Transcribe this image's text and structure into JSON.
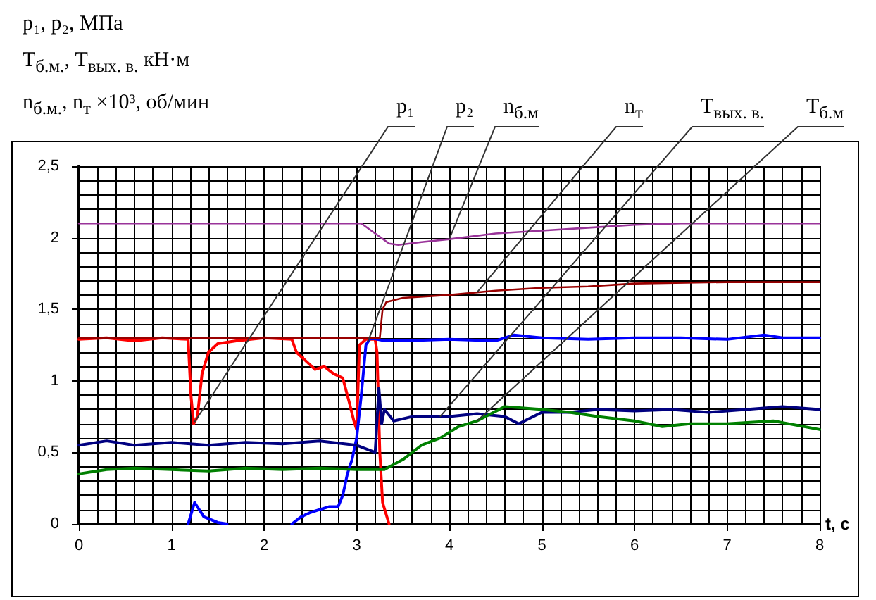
{
  "chart_data": {
    "type": "line",
    "ylabel": "p₁, p₂, МПа\nT$_{б.м.}$, T$_{вых. в.}$ кН·м\nn$_{б.м.}$, n$_{т}$ ×10³, об/мин",
    "xlabel": "t, c",
    "xlim": [
      0,
      8
    ],
    "xticks": [
      0,
      1,
      2,
      3,
      4,
      5,
      6,
      7,
      8
    ],
    "ylim": [
      0,
      2.5
    ],
    "yticks": [
      {
        "value": 0,
        "label": "0"
      },
      {
        "value": 0.5,
        "label": "0,5"
      },
      {
        "value": 1,
        "label": "1"
      },
      {
        "value": 1.5,
        "label": "1,5"
      },
      {
        "value": 2,
        "label": "2"
      },
      {
        "value": 2.5,
        "label": "2,5"
      }
    ],
    "grid": true,
    "series": [
      {
        "name": "p₁",
        "color": "#ff0000",
        "x": [
          0,
          0.3,
          0.6,
          0.9,
          1.18,
          1.21,
          1.24,
          1.28,
          1.33,
          1.4,
          1.5,
          1.7,
          2.0,
          2.3,
          2.35,
          2.45,
          2.55,
          2.65,
          2.75,
          2.85,
          2.92,
          2.97,
          3.0,
          3.03,
          3.1,
          3.2,
          3.22,
          3.25,
          3.28,
          3.35
        ],
        "values": [
          1.29,
          1.3,
          1.28,
          1.3,
          1.29,
          0.9,
          0.7,
          0.75,
          1.05,
          1.2,
          1.26,
          1.28,
          1.3,
          1.29,
          1.2,
          1.14,
          1.08,
          1.1,
          1.05,
          1.02,
          0.85,
          0.72,
          0.66,
          1.25,
          1.29,
          1.29,
          1.2,
          0.5,
          0.15,
          0.0
        ]
      },
      {
        "name": "p₂",
        "color": "#0000ff",
        "x": [
          1.18,
          1.25,
          1.35,
          1.5,
          1.6,
          1.65,
          2.3,
          2.4,
          2.5,
          2.6,
          2.7,
          2.8,
          2.85,
          2.9,
          2.95,
          3.0,
          3.05,
          3.1,
          3.15,
          3.3,
          3.5,
          4.0,
          4.5,
          4.7,
          5.0,
          5.5,
          6.0,
          6.5,
          7.0,
          7.4,
          7.6,
          8.0
        ],
        "values": [
          0.0,
          0.15,
          0.05,
          0.01,
          0.0,
          null,
          0.0,
          0.05,
          0.08,
          0.1,
          0.12,
          0.12,
          0.2,
          0.35,
          0.45,
          0.6,
          0.9,
          1.25,
          1.3,
          1.28,
          1.28,
          1.29,
          1.28,
          1.32,
          1.3,
          1.29,
          1.3,
          1.3,
          1.29,
          1.32,
          1.3,
          1.3
        ]
      },
      {
        "name": "n$_{б.м}$",
        "color": "#993399",
        "x": [
          0,
          1,
          2,
          3.05,
          3.2,
          3.35,
          3.45,
          3.7,
          4.0,
          4.5,
          5.0,
          5.5,
          6.0,
          6.5,
          7.0,
          8.0
        ],
        "values": [
          2.1,
          2.1,
          2.1,
          2.1,
          2.03,
          1.96,
          1.95,
          1.97,
          1.99,
          2.03,
          2.05,
          2.07,
          2.09,
          2.1,
          2.1,
          2.1
        ]
      },
      {
        "name": "n$_{т}$",
        "color": "#990000",
        "x": [
          0,
          1,
          2,
          3.25,
          3.28,
          3.32,
          3.5,
          4.0,
          4.5,
          5.0,
          5.5,
          6.0,
          7.0,
          8.0
        ],
        "values": [
          1.3,
          1.3,
          1.3,
          1.3,
          1.5,
          1.55,
          1.58,
          1.6,
          1.63,
          1.65,
          1.66,
          1.68,
          1.69,
          1.69
        ]
      },
      {
        "name": "T$_{вых. в.}$",
        "color": "#000080",
        "x": [
          0,
          0.3,
          0.6,
          1.0,
          1.4,
          1.8,
          2.2,
          2.6,
          3.0,
          3.2,
          3.24,
          3.27,
          3.3,
          3.4,
          3.6,
          4.0,
          4.3,
          4.6,
          4.75,
          5.0,
          5.3,
          5.6,
          6.0,
          6.4,
          6.8,
          7.2,
          7.6,
          8.0
        ],
        "values": [
          0.55,
          0.58,
          0.55,
          0.57,
          0.55,
          0.57,
          0.56,
          0.58,
          0.55,
          0.5,
          0.95,
          0.7,
          0.8,
          0.72,
          0.75,
          0.75,
          0.77,
          0.75,
          0.7,
          0.78,
          0.78,
          0.8,
          0.79,
          0.8,
          0.78,
          0.8,
          0.82,
          0.8
        ]
      },
      {
        "name": "T$_{б.м}$",
        "color": "#008000",
        "x": [
          0,
          0.3,
          0.6,
          1.0,
          1.4,
          1.8,
          2.2,
          2.6,
          3.0,
          3.3,
          3.5,
          3.7,
          3.9,
          4.1,
          4.3,
          4.6,
          5.0,
          5.3,
          5.6,
          6.0,
          6.3,
          6.6,
          7.0,
          7.5,
          8.0
        ],
        "values": [
          0.35,
          0.38,
          0.39,
          0.38,
          0.37,
          0.39,
          0.38,
          0.39,
          0.38,
          0.38,
          0.45,
          0.55,
          0.6,
          0.68,
          0.72,
          0.82,
          0.8,
          0.78,
          0.75,
          0.72,
          0.68,
          0.7,
          0.7,
          0.72,
          0.66
        ]
      }
    ]
  }
}
